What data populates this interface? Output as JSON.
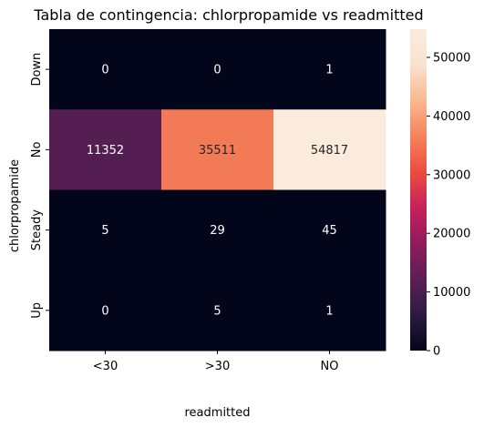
{
  "chart_data": {
    "type": "heatmap",
    "title": "Tabla de contingencia: chlorpropamide vs readmitted",
    "xlabel": "readmitted",
    "ylabel": "chlorpropamide",
    "x_categories": [
      "<30",
      ">30",
      "NO"
    ],
    "y_categories": [
      "Down",
      "No",
      "Steady",
      "Up"
    ],
    "values": [
      [
        0,
        0,
        1
      ],
      [
        11352,
        35511,
        54817
      ],
      [
        5,
        29,
        45
      ],
      [
        0,
        5,
        1
      ]
    ],
    "colorbar": {
      "min": 0,
      "max": 54817,
      "ticks": [
        0,
        10000,
        20000,
        30000,
        40000,
        50000
      ]
    },
    "colormap": "rocket",
    "colormap_stops": [
      "#03051a",
      "#2b1b42",
      "#5c1e55",
      "#8f1c5b",
      "#c6215a",
      "#ec4c3e",
      "#f5835c",
      "#f8b890",
      "#fae2cf",
      "#faebdd"
    ]
  }
}
